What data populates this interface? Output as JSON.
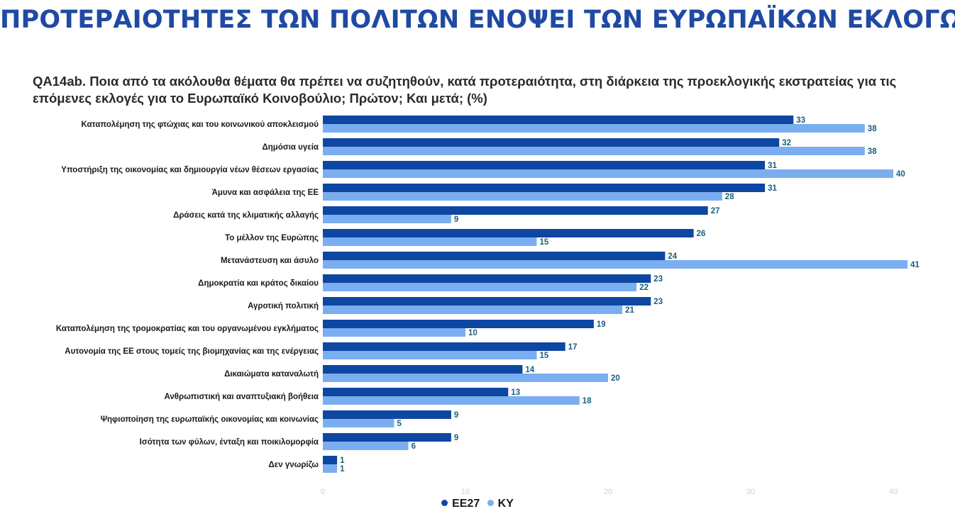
{
  "title": "ΠΡΟΤΕΡΑΙΟΤΗΤΕΣ ΤΩΝ ΠΟΛΙΤΩΝ ΕΝΟΨΕΙ ΤΩΝ ΕΥΡΩΠΑΪΚΩΝ ΕΚΛΟΓΩΝ",
  "question": "QA14ab. Ποια από τα ακόλουθα θέματα θα πρέπει να συζητηθούν, κατά προτεραιότητα, στη διάρκεια της προεκλογικής εκστρατείας για τις επόμενες εκλογές για το Ευρωπαϊκό Κοινοβούλιο; Πρώτον; Και μετά; (%)",
  "colors": {
    "title": "#1f4aa3",
    "series1": "#0d47a1",
    "series2": "#7aaef0",
    "value_label": "#1b5e7e",
    "tick": "#d0d0d0"
  },
  "chart_data": {
    "type": "bar",
    "orientation": "horizontal",
    "categories": [
      "Καταπολέμηση της φτώχιας και του κοινωνικού αποκλεισμού",
      "Δημόσια υγεία",
      "Υποστήριξη της οικονομίας και δημιουργία νέων θέσεων εργασίας",
      "Άμυνα και ασφάλεια της ΕΕ",
      "Δράσεις κατά της κλιματικής αλλαγής",
      "Το μέλλον της Ευρώπης",
      "Μετανάστευση και άσυλο",
      "Δημοκρατία και κράτος δικαίου",
      "Αγροτική πολιτική",
      "Καταπολέμηση της τρομοκρατίας και του οργανωμένου εγκλήματος",
      "Αυτονομία της ΕΕ στους τομείς της βιομηχανίας και της ενέργειας",
      "Δικαιώματα καταναλωτή",
      "Ανθρωπιστική και αναπτυξιακή βοήθεια",
      "Ψηφιοποίηση της ευρωπαϊκής οικονομίας και κοινωνίας",
      "Ισότητα των φύλων, ένταξη και ποικιλομορφία",
      "Δεν γνωρίζω"
    ],
    "series": [
      {
        "name": "ΕΕ27",
        "values": [
          33,
          32,
          31,
          31,
          27,
          26,
          24,
          23,
          23,
          19,
          17,
          14,
          13,
          9,
          9,
          1
        ]
      },
      {
        "name": "ΚΥ",
        "values": [
          38,
          38,
          40,
          28,
          9,
          15,
          41,
          22,
          21,
          10,
          15,
          20,
          18,
          5,
          6,
          1
        ]
      }
    ],
    "xlim": [
      0,
      40
    ],
    "xticks": [
      0,
      10,
      20,
      30,
      40
    ],
    "grid": false,
    "legend_position": "bottom"
  }
}
